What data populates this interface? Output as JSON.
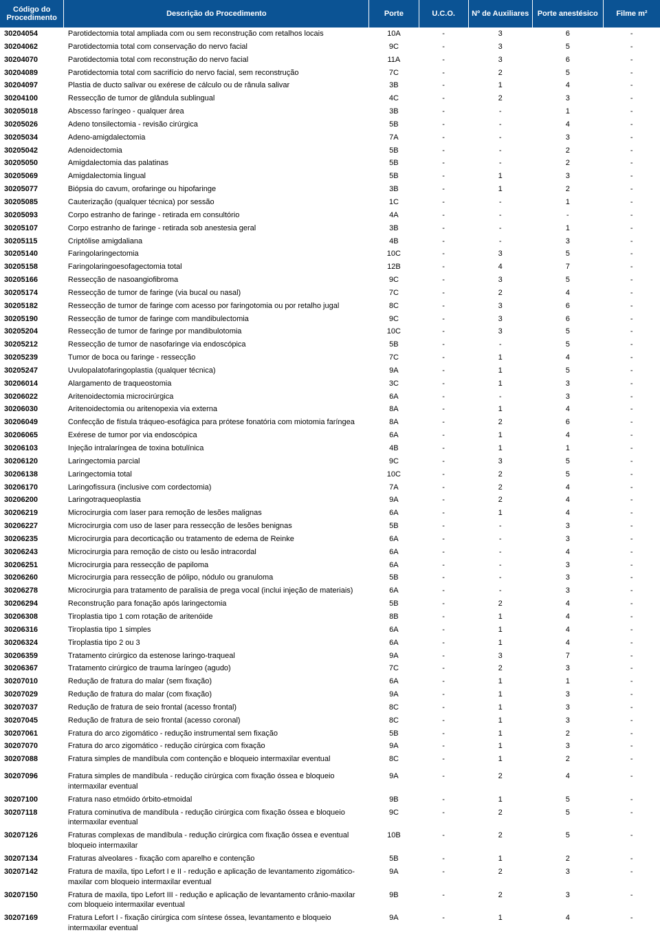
{
  "header": {
    "bg_color": "#0b5394",
    "text_color": "#ffffff",
    "cols": [
      "Código do Procedimento",
      "Descrição do Procedimento",
      "Porte",
      "U.C.O.",
      "Nº de Auxiliares",
      "Porte anestésico",
      "Filme m²"
    ]
  },
  "rows": [
    {
      "code": "30204054",
      "desc": "Parotidectomia total ampliada com ou sem reconstrução com retalhos locais",
      "porte": "10A",
      "uco": "-",
      "aux": "3",
      "anest": "6",
      "filme": "-"
    },
    {
      "code": "30204062",
      "desc": "Parotidectomia total com conservação do nervo facial",
      "porte": "9C",
      "uco": "-",
      "aux": "3",
      "anest": "5",
      "filme": "-"
    },
    {
      "code": "30204070",
      "desc": "Parotidectomia total com reconstrução do nervo facial",
      "porte": "11A",
      "uco": "-",
      "aux": "3",
      "anest": "6",
      "filme": "-"
    },
    {
      "code": "30204089",
      "desc": "Parotidectomia total com sacrifício do nervo facial, sem reconstrução",
      "porte": "7C",
      "uco": "-",
      "aux": "2",
      "anest": "5",
      "filme": "-"
    },
    {
      "code": "30204097",
      "desc": "Plastia de ducto salivar ou exérese de cálculo ou de rânula salivar",
      "porte": "3B",
      "uco": "-",
      "aux": "1",
      "anest": "4",
      "filme": "-"
    },
    {
      "code": "30204100",
      "desc": "Ressecção de tumor de glândula sublingual",
      "porte": "4C",
      "uco": "-",
      "aux": "2",
      "anest": "3",
      "filme": "-"
    },
    {
      "code": "30205018",
      "desc": "Abscesso faríngeo - qualquer área",
      "porte": "3B",
      "uco": "-",
      "aux": "-",
      "anest": "1",
      "filme": "-"
    },
    {
      "code": "30205026",
      "desc": "Adeno tonsilectomia - revisão cirúrgica",
      "porte": "5B",
      "uco": "-",
      "aux": "-",
      "anest": "4",
      "filme": "-"
    },
    {
      "code": "30205034",
      "desc": "Adeno-amigdalectomia",
      "porte": "7A",
      "uco": "-",
      "aux": "-",
      "anest": "3",
      "filme": "-"
    },
    {
      "code": "30205042",
      "desc": "Adenoidectomia",
      "porte": "5B",
      "uco": "-",
      "aux": "-",
      "anest": "2",
      "filme": "-"
    },
    {
      "code": "30205050",
      "desc": "Amigdalectomia das palatinas",
      "porte": "5B",
      "uco": "-",
      "aux": "-",
      "anest": "2",
      "filme": "-"
    },
    {
      "code": "30205069",
      "desc": "Amigdalectomia lingual",
      "porte": "5B",
      "uco": "-",
      "aux": "1",
      "anest": "3",
      "filme": "-"
    },
    {
      "code": "30205077",
      "desc": "Biópsia do cavum, orofaringe ou hipofaringe",
      "porte": "3B",
      "uco": "-",
      "aux": "1",
      "anest": "2",
      "filme": "-"
    },
    {
      "code": "30205085",
      "desc": "Cauterização (qualquer técnica) por sessão",
      "porte": "1C",
      "uco": "-",
      "aux": "-",
      "anest": "1",
      "filme": "-"
    },
    {
      "code": "30205093",
      "desc": "Corpo estranho de faringe - retirada em consultório",
      "porte": "4A",
      "uco": "-",
      "aux": "-",
      "anest": "-",
      "filme": "-"
    },
    {
      "code": "30205107",
      "desc": "Corpo estranho de faringe - retirada sob anestesia geral",
      "porte": "3B",
      "uco": "-",
      "aux": "-",
      "anest": "1",
      "filme": "-"
    },
    {
      "code": "30205115",
      "desc": "Criptólise amigdaliana",
      "porte": "4B",
      "uco": "-",
      "aux": "-",
      "anest": "3",
      "filme": "-"
    },
    {
      "code": "30205140",
      "desc": "Faringolaringectomia",
      "porte": "10C",
      "uco": "-",
      "aux": "3",
      "anest": "5",
      "filme": "-"
    },
    {
      "code": "30205158",
      "desc": "Faringolaringoesofagectomia total",
      "porte": "12B",
      "uco": "-",
      "aux": "4",
      "anest": "7",
      "filme": "-"
    },
    {
      "code": "30205166",
      "desc": "Ressecção de nasoangiofibroma",
      "porte": "9C",
      "uco": "-",
      "aux": "3",
      "anest": "5",
      "filme": "-"
    },
    {
      "code": "30205174",
      "desc": "Ressecção de tumor de faringe (via bucal ou nasal)",
      "porte": "7C",
      "uco": "-",
      "aux": "2",
      "anest": "4",
      "filme": "-"
    },
    {
      "code": "30205182",
      "desc": "Ressecção de tumor de faringe com acesso por faringotomia ou por retalho jugal",
      "porte": "8C",
      "uco": "-",
      "aux": "3",
      "anest": "6",
      "filme": "-"
    },
    {
      "code": "30205190",
      "desc": "Ressecção de tumor de faringe com mandibulectomia",
      "porte": "9C",
      "uco": "-",
      "aux": "3",
      "anest": "6",
      "filme": "-"
    },
    {
      "code": "30205204",
      "desc": "Ressecção de tumor de faringe por mandibulotomia",
      "porte": "10C",
      "uco": "-",
      "aux": "3",
      "anest": "5",
      "filme": "-"
    },
    {
      "code": "30205212",
      "desc": "Ressecção de tumor de nasofaringe via endoscópica",
      "porte": "5B",
      "uco": "-",
      "aux": "-",
      "anest": "5",
      "filme": "-"
    },
    {
      "code": "30205239",
      "desc": "Tumor de boca ou faringe - ressecção",
      "porte": "7C",
      "uco": "-",
      "aux": "1",
      "anest": "4",
      "filme": "-"
    },
    {
      "code": "30205247",
      "desc": "Uvulopalatofaringoplastia (qualquer técnica)",
      "porte": "9A",
      "uco": "-",
      "aux": "1",
      "anest": "5",
      "filme": "-"
    },
    {
      "code": "30206014",
      "desc": "Alargamento de traqueostomia",
      "porte": "3C",
      "uco": "-",
      "aux": "1",
      "anest": "3",
      "filme": "-"
    },
    {
      "code": "30206022",
      "desc": "Aritenoidectomia microcirúrgica",
      "porte": "6A",
      "uco": "-",
      "aux": "-",
      "anest": "3",
      "filme": "-"
    },
    {
      "code": "30206030",
      "desc": "Aritenoidectomia ou aritenopexia via externa",
      "porte": "8A",
      "uco": "-",
      "aux": "1",
      "anest": "4",
      "filme": "-"
    },
    {
      "code": "30206049",
      "desc": "Confecção de fístula tráqueo-esofágica para prótese fonatória com miotomia faríngea",
      "porte": "8A",
      "uco": "-",
      "aux": "2",
      "anest": "6",
      "filme": "-"
    },
    {
      "code": "30206065",
      "desc": "Exérese de tumor por via endoscópica",
      "porte": "6A",
      "uco": "-",
      "aux": "1",
      "anest": "4",
      "filme": "-"
    },
    {
      "code": "30206103",
      "desc": "Injeção intralaríngea de toxina botulínica",
      "porte": "4B",
      "uco": "-",
      "aux": "1",
      "anest": "1",
      "filme": "-"
    },
    {
      "code": "30206120",
      "desc": "Laringectomia parcial",
      "porte": "9C",
      "uco": "-",
      "aux": "3",
      "anest": "5",
      "filme": "-"
    },
    {
      "code": "30206138",
      "desc": "Laringectomia total",
      "porte": "10C",
      "uco": "-",
      "aux": "2",
      "anest": "5",
      "filme": "-"
    },
    {
      "code": "30206170",
      "desc": "Laringofissura (inclusive com cordectomia)",
      "porte": "7A",
      "uco": "-",
      "aux": "2",
      "anest": "4",
      "filme": "-"
    },
    {
      "code": "30206200",
      "desc": "Laringotraqueoplastia",
      "porte": "9A",
      "uco": "-",
      "aux": "2",
      "anest": "4",
      "filme": "-"
    },
    {
      "code": "30206219",
      "desc": "Microcirurgia com laser para remoção de lesões malignas",
      "porte": "6A",
      "uco": "-",
      "aux": "1",
      "anest": "4",
      "filme": "-"
    },
    {
      "code": "30206227",
      "desc": "Microcirurgia com uso de laser para ressecção de lesões benignas",
      "porte": "5B",
      "uco": "-",
      "aux": "-",
      "anest": "3",
      "filme": "-"
    },
    {
      "code": "30206235",
      "desc": "Microcirurgia para decorticação ou tratamento de edema de Reinke",
      "porte": "6A",
      "uco": "-",
      "aux": "-",
      "anest": "3",
      "filme": "-"
    },
    {
      "code": "30206243",
      "desc": "Microcirurgia para remoção de cisto ou lesão intracordal",
      "porte": "6A",
      "uco": "-",
      "aux": "-",
      "anest": "4",
      "filme": "-"
    },
    {
      "code": "30206251",
      "desc": "Microcirurgia para ressecção de papiloma",
      "porte": "6A",
      "uco": "-",
      "aux": "-",
      "anest": "3",
      "filme": "-"
    },
    {
      "code": "30206260",
      "desc": "Microcirurgia para ressecção de pólipo, nódulo ou granuloma",
      "porte": "5B",
      "uco": "-",
      "aux": "-",
      "anest": "3",
      "filme": "-"
    },
    {
      "code": "30206278",
      "desc": "Microcirurgia para tratamento de paralisia de prega vocal (inclui injeção de materiais)",
      "porte": "6A",
      "uco": "-",
      "aux": "-",
      "anest": "3",
      "filme": "-"
    },
    {
      "code": "30206294",
      "desc": "Reconstrução para fonação após laringectomia",
      "porte": "5B",
      "uco": "-",
      "aux": "2",
      "anest": "4",
      "filme": "-"
    },
    {
      "code": "30206308",
      "desc": "Tiroplastia tipo 1 com rotação de aritenóide",
      "porte": "8B",
      "uco": "-",
      "aux": "1",
      "anest": "4",
      "filme": "-"
    },
    {
      "code": "30206316",
      "desc": "Tiroplastia tipo 1 simples",
      "porte": "6A",
      "uco": "-",
      "aux": "1",
      "anest": "4",
      "filme": "-"
    },
    {
      "code": "30206324",
      "desc": "Tiroplastia tipo 2 ou 3",
      "porte": "6A",
      "uco": "-",
      "aux": "1",
      "anest": "4",
      "filme": "-"
    },
    {
      "code": "30206359",
      "desc": "Tratamento cirúrgico da estenose laringo-traqueal",
      "porte": "9A",
      "uco": "-",
      "aux": "3",
      "anest": "7",
      "filme": "-"
    },
    {
      "code": "30206367",
      "desc": "Tratamento cirúrgico de trauma laríngeo (agudo)",
      "porte": "7C",
      "uco": "-",
      "aux": "2",
      "anest": "3",
      "filme": "-"
    },
    {
      "code": "30207010",
      "desc": "Redução de fratura do malar (sem fixação)",
      "porte": "6A",
      "uco": "-",
      "aux": "1",
      "anest": "1",
      "filme": "-"
    },
    {
      "code": "30207029",
      "desc": "Redução de fratura do malar (com fixação)",
      "porte": "9A",
      "uco": "-",
      "aux": "1",
      "anest": "3",
      "filme": "-"
    },
    {
      "code": "30207037",
      "desc": "Redução de fratura de seio frontal (acesso frontal)",
      "porte": "8C",
      "uco": "-",
      "aux": "1",
      "anest": "3",
      "filme": "-"
    },
    {
      "code": "30207045",
      "desc": "Redução de fratura de seio frontal (acesso coronal)",
      "porte": "8C",
      "uco": "-",
      "aux": "1",
      "anest": "3",
      "filme": "-"
    },
    {
      "code": "30207061",
      "desc": "Fratura do arco zigomático - redução instrumental sem fixação",
      "porte": "5B",
      "uco": "-",
      "aux": "1",
      "anest": "2",
      "filme": "-"
    },
    {
      "code": "30207070",
      "desc": "Fratura do arco zigomático - redução cirúrgica com fixação",
      "porte": "9A",
      "uco": "-",
      "aux": "1",
      "anest": "3",
      "filme": "-"
    },
    {
      "code": "30207088",
      "desc": "Fratura  simples de mandíbula com contenção e bloqueio intermaxilar eventual",
      "porte": "8C",
      "uco": "-",
      "aux": "1",
      "anest": "2",
      "filme": "-"
    },
    {
      "code": "30207096",
      "desc": "Fratura simples de mandíbula - redução cirúrgica com fixação óssea e bloqueio intermaxilar eventual",
      "porte": "9A",
      "uco": "-",
      "aux": "2",
      "anest": "4",
      "filme": "-",
      "spacer": true
    },
    {
      "code": "30207100",
      "desc": "Fratura naso etmóido órbito-etmoidal",
      "porte": "9B",
      "uco": "-",
      "aux": "1",
      "anest": "5",
      "filme": "-"
    },
    {
      "code": "30207118",
      "desc": "Fratura cominutiva de mandíbula - redução cirúrgica com fixação óssea e bloqueio intermaxilar eventual",
      "porte": "9C",
      "uco": "-",
      "aux": "2",
      "anest": "5",
      "filme": "-"
    },
    {
      "code": "30207126",
      "desc": "Fraturas complexas de mandíbula - redução cirúrgica com fixação óssea e eventual bloqueio intermaxilar",
      "porte": "10B",
      "uco": "-",
      "aux": "2",
      "anest": "5",
      "filme": "-"
    },
    {
      "code": "30207134",
      "desc": "Fraturas alveolares - fixação com aparelho e contenção",
      "porte": "5B",
      "uco": "-",
      "aux": "1",
      "anest": "2",
      "filme": "-"
    },
    {
      "code": "30207142",
      "desc": "Fratura de maxila, tipo Lefort I e II - redução e aplicação de levantamento zigomático-maxilar com bloqueio intermaxilar eventual",
      "porte": "9A",
      "uco": "-",
      "aux": "2",
      "anest": "3",
      "filme": "-"
    },
    {
      "code": "30207150",
      "desc": "Fratura de maxila, tipo Lefort III - redução e aplicação de levantamento crânio-maxilar com bloqueio intermaxilar eventual",
      "porte": "9B",
      "uco": "-",
      "aux": "2",
      "anest": "3",
      "filme": "-"
    },
    {
      "code": "30207169",
      "desc": "Fratura Lefort I - fixação cirúrgica com síntese óssea, levantamento e bloqueio intermaxilar eventual",
      "porte": "9A",
      "uco": "-",
      "aux": "1",
      "anest": "4",
      "filme": "-"
    }
  ]
}
